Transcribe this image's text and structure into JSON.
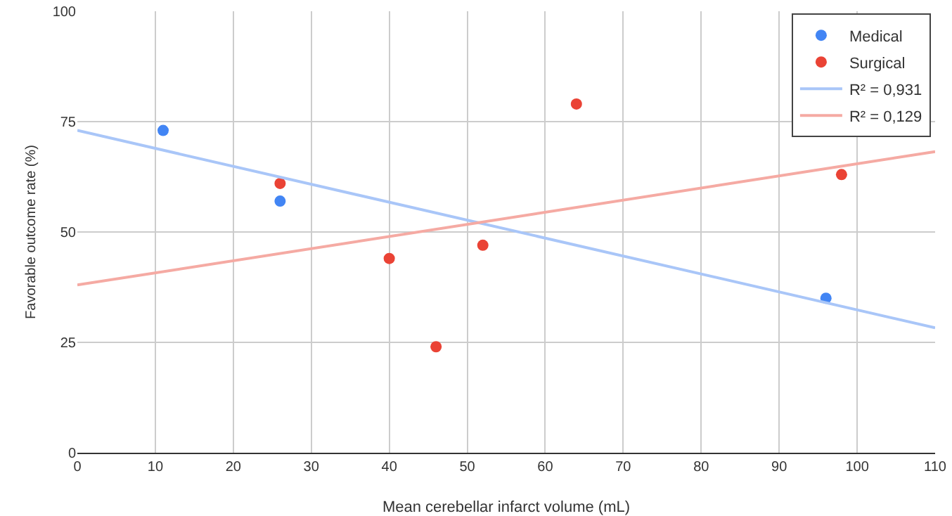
{
  "chart_data": {
    "type": "scatter",
    "xlabel": "Mean cerebellar infarct volume (mL)",
    "ylabel": "Favorable outcome rate (%)",
    "xlim": [
      0,
      110
    ],
    "xticks": [
      0,
      10,
      20,
      30,
      40,
      50,
      60,
      70,
      80,
      90,
      100,
      110
    ],
    "ylim": [
      0,
      100
    ],
    "yticks": [
      0,
      25,
      50,
      75,
      100
    ],
    "grid": true,
    "legend": "top right",
    "series": [
      {
        "name": "Medical",
        "marker": "circle",
        "color": "#4285f4",
        "x": [
          11,
          26,
          96
        ],
        "values": [
          73,
          57,
          35
        ]
      },
      {
        "name": "Surgical",
        "marker": "circle",
        "color": "#ea4335",
        "x": [
          26,
          40,
          46,
          52,
          64,
          98
        ],
        "values": [
          61,
          44,
          24,
          47,
          79,
          63
        ]
      },
      {
        "name": "R² = 0,931",
        "type": "line",
        "marker": "none",
        "color": "#a9c6f8",
        "x": [
          0,
          110
        ],
        "values": [
          73,
          28.3
        ]
      },
      {
        "name": "R² = 0,129",
        "type": "line",
        "marker": "none",
        "color": "#f5aaa3",
        "x": [
          0,
          110
        ],
        "values": [
          38,
          68.2
        ]
      }
    ]
  }
}
